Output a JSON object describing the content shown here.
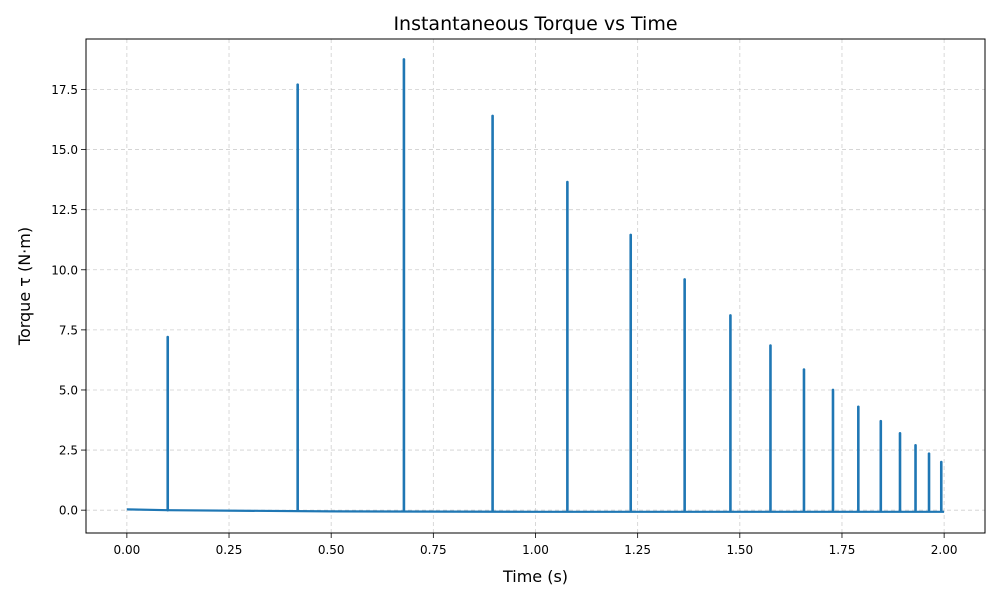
{
  "chart_data": {
    "type": "line",
    "title": "Instantaneous Torque vs Time",
    "xlabel": "Time (s)",
    "ylabel": "Torque τ (N·m)",
    "xlim": [
      -0.1,
      2.1
    ],
    "ylim": [
      -0.95,
      19.6
    ],
    "xticks": [
      0.0,
      0.25,
      0.5,
      0.75,
      1.0,
      1.25,
      1.5,
      1.75,
      2.0
    ],
    "xtick_labels": [
      "0.00",
      "0.25",
      "0.50",
      "0.75",
      "1.00",
      "1.25",
      "1.50",
      "1.75",
      "2.00"
    ],
    "yticks": [
      0.0,
      2.5,
      5.0,
      7.5,
      10.0,
      12.5,
      15.0,
      17.5
    ],
    "ytick_labels": [
      "0.0",
      "2.5",
      "5.0",
      "7.5",
      "10.0",
      "12.5",
      "15.0",
      "17.5"
    ],
    "grid": true,
    "series": [
      {
        "name": "Torque",
        "color": "#1f77b4",
        "baseline": [
          [
            0.0,
            0.03
          ],
          [
            0.1,
            0.0
          ],
          [
            0.5,
            -0.05
          ],
          [
            1.0,
            -0.07
          ],
          [
            2.0,
            -0.07
          ]
        ],
        "spikes": [
          {
            "t": 0.1,
            "value": 7.2
          },
          {
            "t": 0.418,
            "value": 17.7
          },
          {
            "t": 0.678,
            "value": 18.75
          },
          {
            "t": 0.895,
            "value": 16.4
          },
          {
            "t": 1.078,
            "value": 13.65
          },
          {
            "t": 1.233,
            "value": 11.45
          },
          {
            "t": 1.365,
            "value": 9.6
          },
          {
            "t": 1.477,
            "value": 8.1
          },
          {
            "t": 1.575,
            "value": 6.85
          },
          {
            "t": 1.657,
            "value": 5.85
          },
          {
            "t": 1.728,
            "value": 5.0
          },
          {
            "t": 1.79,
            "value": 4.3
          },
          {
            "t": 1.845,
            "value": 3.7
          },
          {
            "t": 1.892,
            "value": 3.2
          },
          {
            "t": 1.93,
            "value": 2.7
          },
          {
            "t": 1.963,
            "value": 2.35
          },
          {
            "t": 1.993,
            "value": 2.0
          }
        ]
      }
    ]
  }
}
